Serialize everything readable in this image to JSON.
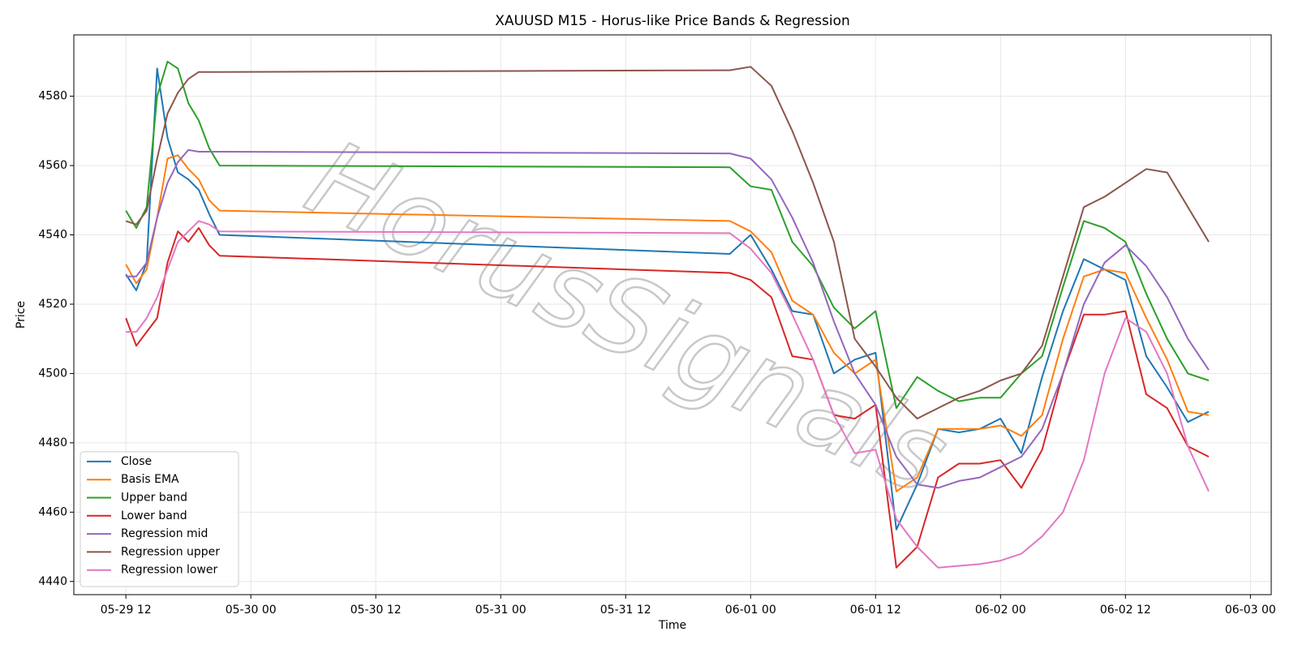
{
  "chart_data": {
    "type": "line",
    "title": "XAUUSD M15 - Horus-like Price Bands & Regression",
    "xlabel": "Time",
    "ylabel": "Price",
    "watermark": "HorusSignals",
    "grid": true,
    "legend": "lower left",
    "x": [
      "05-29 12",
      "05-29 13",
      "05-29 14",
      "05-29 15",
      "05-29 16",
      "05-29 17",
      "05-29 18",
      "05-29 19",
      "05-29 20",
      "05-29 21",
      "05-31 22",
      "06-01 00",
      "06-01 02",
      "06-01 04",
      "06-01 06",
      "06-01 08",
      "06-01 10",
      "06-01 12",
      "06-01 14",
      "06-01 16",
      "06-01 18",
      "06-01 20",
      "06-01 22",
      "06-02 00",
      "06-02 02",
      "06-02 04",
      "06-02 06",
      "06-02 08",
      "06-02 10",
      "06-02 12",
      "06-02 14",
      "06-02 16",
      "06-02 18",
      "06-02 20"
    ],
    "xlim": [
      "05-29 07",
      "06-03 02"
    ],
    "xticks": [
      "05-29 12",
      "05-30 00",
      "05-30 12",
      "05-31 00",
      "05-31 12",
      "06-01 00",
      "06-01 12",
      "06-02 00",
      "06-02 12",
      "06-03 00"
    ],
    "ylim": [
      4436.2,
      4597.7
    ],
    "yticks": [
      4440,
      4460,
      4480,
      4500,
      4520,
      4540,
      4560,
      4580
    ],
    "series": [
      {
        "name": "Close",
        "color": "#1f77b4",
        "values": [
          4528.6,
          4524,
          4532,
          4588,
          4568,
          4558,
          4556,
          4553,
          4546,
          4540,
          4534.5,
          4540,
          4530,
          4518,
          4517,
          4500,
          4504,
          4506,
          4455,
          4468,
          4484,
          4483,
          4484,
          4487,
          4477,
          4499,
          4518,
          4533,
          4530,
          4527,
          4505,
          4496,
          4486,
          4489
        ]
      },
      {
        "name": "Basis EMA",
        "color": "#ff7f0e",
        "values": [
          4531.5,
          4526,
          4530,
          4545,
          4562,
          4563,
          4559,
          4556,
          4550,
          4547,
          4544,
          4541,
          4535,
          4521,
          4517,
          4506,
          4500,
          4504,
          4466,
          4470,
          4484,
          4484,
          4484,
          4485,
          4482,
          4488,
          4510,
          4528,
          4530,
          4529,
          4516,
          4504,
          4489,
          4488
        ]
      },
      {
        "name": "Upper band",
        "color": "#2ca02c",
        "values": [
          4547,
          4542,
          4548,
          4580,
          4590,
          4588,
          4578,
          4573,
          4565,
          4560,
          4559.5,
          4554,
          4553,
          4538,
          4531,
          4519,
          4513,
          4518,
          4490,
          4499,
          4495,
          4492,
          4493,
          4493,
          4500,
          4505,
          4525,
          4544,
          4542,
          4538,
          4523,
          4510,
          4500,
          4498
        ]
      },
      {
        "name": "Lower band",
        "color": "#d62728",
        "values": [
          4516,
          4508,
          4512,
          4516,
          4532,
          4541,
          4538,
          4542,
          4537,
          4534,
          4529,
          4527,
          4522,
          4505,
          4504,
          4488,
          4487,
          4491,
          4444,
          4450,
          4470,
          4474,
          4474,
          4475,
          4467,
          4478,
          4500,
          4517,
          4517,
          4518,
          4494,
          4490,
          4479,
          4476
        ]
      },
      {
        "name": "Regression mid",
        "color": "#9467bd",
        "values": [
          4528,
          4528,
          4532,
          4545,
          4555,
          4561,
          4564.5,
          4564,
          4564,
          4564,
          4563.5,
          4562,
          4556,
          4545,
          4532,
          4515,
          4500,
          4491,
          4476,
          4468,
          4467,
          4469,
          4470,
          4473,
          4476,
          4484,
          4500,
          4520,
          4532,
          4537,
          4531,
          4522,
          4510,
          4501
        ]
      },
      {
        "name": "Regression upper",
        "color": "#8c564b",
        "values": [
          4544,
          4543,
          4547,
          4562,
          4575,
          4581,
          4585,
          4587,
          4587,
          4587,
          4587.5,
          4588.5,
          4583,
          4570,
          4555,
          4538,
          4510,
          4502,
          4493,
          4487,
          4490,
          4493,
          4495,
          4498,
          4500,
          4508,
          4528,
          4548,
          4551,
          4555,
          4559,
          4558,
          4548,
          4538
        ]
      },
      {
        "name": "Regression lower",
        "color": "#e377c2",
        "values": [
          4512,
          4512,
          4516,
          4522,
          4530,
          4538,
          4541,
          4544,
          4543,
          4541,
          4540.5,
          4536,
          4529,
          4517,
          4504,
          4488,
          4477,
          4478,
          4458,
          4450,
          4444,
          4444.5,
          4445,
          4446,
          4448,
          4453,
          4460,
          4475,
          4500,
          4516,
          4512,
          4500,
          4479,
          4466
        ]
      }
    ]
  }
}
